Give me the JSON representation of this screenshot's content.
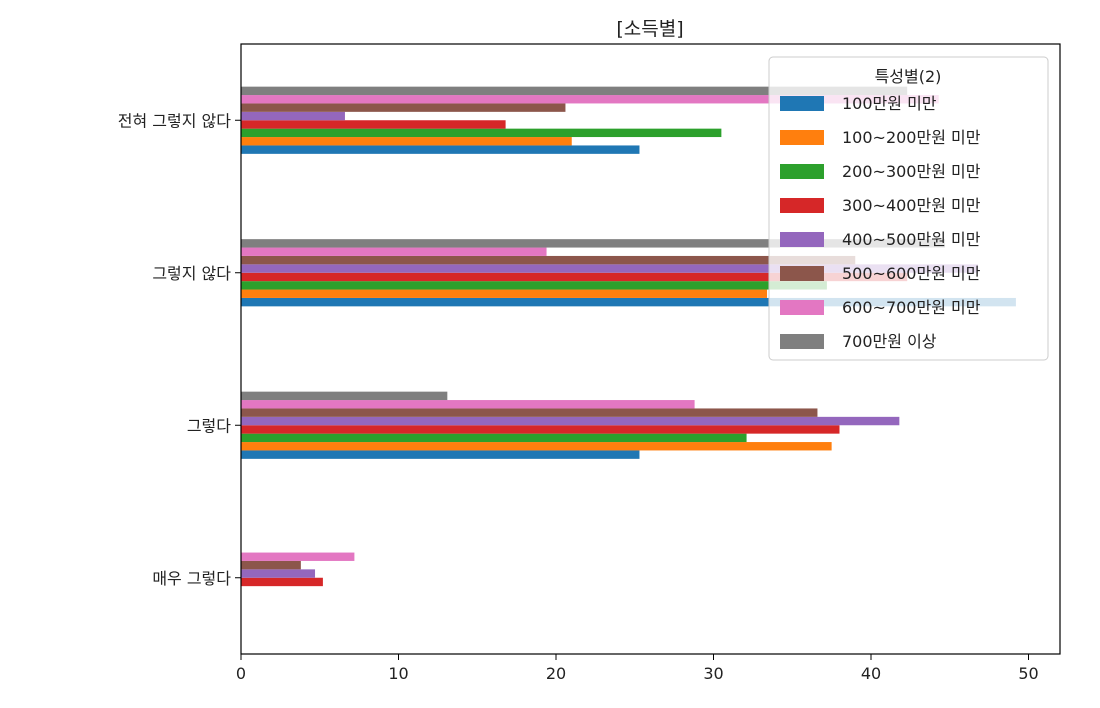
{
  "chart_data": {
    "type": "bar",
    "orientation": "horizontal",
    "title": "[소득별]",
    "categories": [
      "매우 그렇다",
      "그렇다",
      "그렇지 않다",
      "전혀 그렇지 않다"
    ],
    "xlim": [
      0,
      52
    ],
    "xticks": [
      0,
      10,
      20,
      30,
      40,
      50
    ],
    "grid": false,
    "legend": {
      "title": "특성별(2)",
      "placement": "top-right"
    },
    "series": [
      {
        "name": "100만원 미만",
        "color": "#1f77b4",
        "values": [
          0,
          25.3,
          49.2,
          25.3
        ]
      },
      {
        "name": "100~200만원 미만",
        "color": "#ff7f0e",
        "values": [
          0,
          37.5,
          33.4,
          21.0
        ]
      },
      {
        "name": "200~300만원 미만",
        "color": "#2ca02c",
        "values": [
          0,
          32.1,
          37.2,
          30.5
        ]
      },
      {
        "name": "300~400만원 미만",
        "color": "#d62728",
        "values": [
          5.2,
          38.0,
          42.3,
          16.8
        ]
      },
      {
        "name": "400~500만원 미만",
        "color": "#9467bd",
        "values": [
          4.7,
          41.8,
          46.8,
          6.6
        ]
      },
      {
        "name": "500~600만원 미만",
        "color": "#8c564b",
        "values": [
          3.8,
          36.6,
          39.0,
          20.6
        ]
      },
      {
        "name": "600~700만원 미만",
        "color": "#e377c2",
        "values": [
          7.2,
          28.8,
          19.4,
          44.3
        ]
      },
      {
        "name": "700만원 이상",
        "color": "#7f7f7f",
        "values": [
          0,
          13.1,
          44.7,
          42.3
        ]
      }
    ]
  }
}
